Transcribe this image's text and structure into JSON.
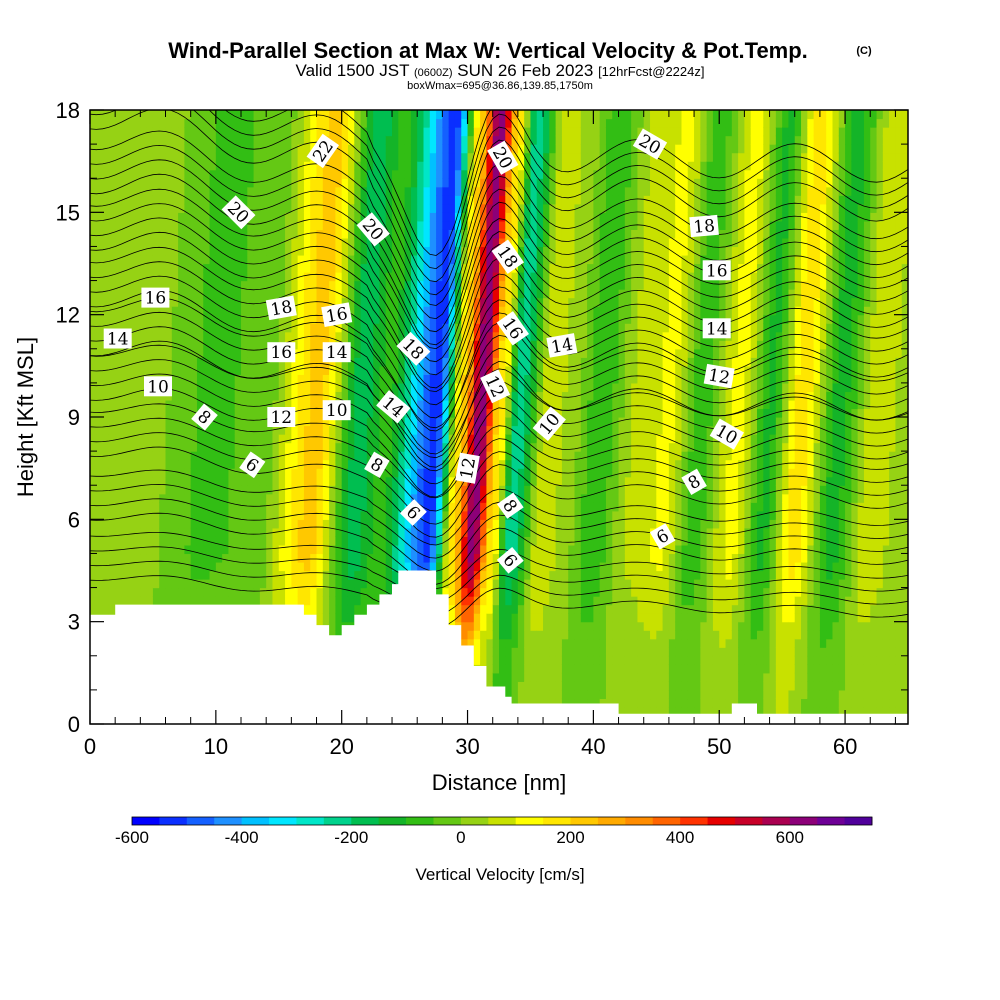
{
  "chart_data": {
    "type": "heatmap",
    "title": "Wind-Parallel Section at Max W: Vertical Velocity & Pot.Temp.",
    "title_mark": "(C)",
    "subtitle_parts": {
      "valid": "Valid 1500 JST",
      "utc": "(0600Z)",
      "date": "SUN 26 Feb 2023",
      "fcst": "[12hrFcst@2224z]"
    },
    "box_note": "boxWmax=695@36.86,139.85,1750m",
    "xlabel": "Distance [nm]",
    "ylabel": "Height [Kft MSL]",
    "xlim": [
      0,
      65
    ],
    "ylim": [
      0,
      18
    ],
    "xticks": [
      "0",
      "10",
      "20",
      "30",
      "40",
      "50",
      "60"
    ],
    "yticks": [
      "0",
      "3",
      "6",
      "9",
      "12",
      "15",
      "18"
    ],
    "colorbar": {
      "label": "Vertical Velocity [cm/s]",
      "min": -600,
      "max": 750,
      "step": 50,
      "tick_labels": [
        "-600",
        "-400",
        "-200",
        "0",
        "200",
        "400",
        "600"
      ],
      "colors": [
        "#0000ff",
        "#0a2fff",
        "#1460ff",
        "#1e90ff",
        "#00c0ff",
        "#00e6ff",
        "#00e6c8",
        "#00d28c",
        "#00be50",
        "#14b428",
        "#32be14",
        "#64c814",
        "#96d214",
        "#c8e100",
        "#ffff00",
        "#ffe600",
        "#ffc800",
        "#ffaa00",
        "#ff8c00",
        "#ff6400",
        "#ff3200",
        "#e60000",
        "#c80028",
        "#aa0050",
        "#8c0078",
        "#6e0096",
        "#50009b"
      ]
    },
    "velocity_bands": [
      {
        "x": 0,
        "w": 0
      },
      {
        "x": 4,
        "w": 20
      },
      {
        "x": 9,
        "w": -60
      },
      {
        "x": 13,
        "w": -40
      },
      {
        "x": 17.5,
        "w": 220
      },
      {
        "x": 21,
        "w": -180
      },
      {
        "x": 23,
        "w": -80
      },
      {
        "x": 27,
        "w": -520
      },
      {
        "x": 29,
        "w": 200
      },
      {
        "x": 30.5,
        "w": 640
      },
      {
        "x": 32,
        "w": 180
      },
      {
        "x": 33.5,
        "w": -230
      },
      {
        "x": 36,
        "w": 100
      },
      {
        "x": 38,
        "w": 10
      },
      {
        "x": 40,
        "w": -90
      },
      {
        "x": 43,
        "w": 60
      },
      {
        "x": 45.5,
        "w": 110
      },
      {
        "x": 48,
        "w": -80
      },
      {
        "x": 51,
        "w": 120
      },
      {
        "x": 53.5,
        "w": -110
      },
      {
        "x": 56,
        "w": 180
      },
      {
        "x": 59,
        "w": -120
      },
      {
        "x": 62,
        "w": 90
      },
      {
        "x": 65,
        "w": 0
      }
    ],
    "terrain": [
      [
        0,
        3.2
      ],
      [
        2,
        3.2
      ],
      [
        2,
        3.5
      ],
      [
        17,
        3.5
      ],
      [
        17,
        3.2
      ],
      [
        18,
        3.2
      ],
      [
        18,
        2.9
      ],
      [
        19,
        2.9
      ],
      [
        19,
        2.6
      ],
      [
        20,
        2.6
      ],
      [
        20,
        2.9
      ],
      [
        21,
        2.9
      ],
      [
        21,
        3.2
      ],
      [
        22,
        3.2
      ],
      [
        22,
        3.5
      ],
      [
        23,
        3.5
      ],
      [
        23,
        3.8
      ],
      [
        24,
        3.8
      ],
      [
        24,
        4.1
      ],
      [
        24.5,
        4.1
      ],
      [
        24.5,
        4.5
      ],
      [
        27.5,
        4.5
      ],
      [
        27.5,
        3.8
      ],
      [
        28.5,
        3.8
      ],
      [
        28.5,
        2.9
      ],
      [
        29.5,
        2.9
      ],
      [
        29.5,
        2.3
      ],
      [
        30.5,
        2.3
      ],
      [
        30.5,
        1.7
      ],
      [
        31.5,
        1.7
      ],
      [
        31.5,
        1.1
      ],
      [
        33,
        1.1
      ],
      [
        33,
        0.8
      ],
      [
        33.5,
        0.8
      ],
      [
        33.5,
        0.6
      ],
      [
        42,
        0.6
      ],
      [
        42,
        0.3
      ],
      [
        51,
        0.3
      ],
      [
        51,
        0.6
      ],
      [
        53,
        0.6
      ],
      [
        53,
        0.3
      ],
      [
        65,
        0.3
      ]
    ],
    "theta_contours": [
      {
        "value": "6",
        "base": 5.6,
        "amp": 1.0
      },
      {
        "value": "8",
        "base": 7.2,
        "amp": 1.4
      },
      {
        "value": "10",
        "base": 8.9,
        "amp": 1.8
      },
      {
        "value": "12",
        "base": 10.4,
        "amp": 2.2
      },
      {
        "value": "14",
        "base": 11.6,
        "amp": 2.6
      },
      {
        "value": "16",
        "base": 12.9,
        "amp": 2.9
      },
      {
        "value": "18",
        "base": 14.4,
        "amp": 3.2
      },
      {
        "value": "20",
        "base": 15.9,
        "amp": 3.5
      },
      {
        "value": "22",
        "base": 17.6,
        "amp": 3.8
      }
    ],
    "contour_labels": [
      {
        "text": "22",
        "x": 18.5,
        "y": 16.8,
        "rot": -55
      },
      {
        "text": "20",
        "x": 11.8,
        "y": 15.0,
        "rot": 45
      },
      {
        "text": "20",
        "x": 22.5,
        "y": 14.5,
        "rot": 50
      },
      {
        "text": "20",
        "x": 32.8,
        "y": 16.6,
        "rot": 60
      },
      {
        "text": "20",
        "x": 44.5,
        "y": 17.0,
        "rot": 30
      },
      {
        "text": "18",
        "x": 15.2,
        "y": 12.2,
        "rot": -10
      },
      {
        "text": "18",
        "x": 25.7,
        "y": 11.0,
        "rot": 45
      },
      {
        "text": "18",
        "x": 33.2,
        "y": 13.7,
        "rot": 55
      },
      {
        "text": "18",
        "x": 48.8,
        "y": 14.6,
        "rot": -5
      },
      {
        "text": "16",
        "x": 5.2,
        "y": 12.5,
        "rot": 0
      },
      {
        "text": "16",
        "x": 15.2,
        "y": 10.9,
        "rot": 0
      },
      {
        "text": "16",
        "x": 19.6,
        "y": 12.0,
        "rot": -10
      },
      {
        "text": "16",
        "x": 33.6,
        "y": 11.6,
        "rot": 55
      },
      {
        "text": "16",
        "x": 49.8,
        "y": 13.3,
        "rot": 0
      },
      {
        "text": "14",
        "x": 2.2,
        "y": 11.3,
        "rot": 0
      },
      {
        "text": "14",
        "x": 19.6,
        "y": 10.9,
        "rot": 0
      },
      {
        "text": "14",
        "x": 24.1,
        "y": 9.3,
        "rot": 40
      },
      {
        "text": "14",
        "x": 37.5,
        "y": 11.1,
        "rot": -10
      },
      {
        "text": "14",
        "x": 49.8,
        "y": 11.6,
        "rot": 0
      },
      {
        "text": "12",
        "x": 15.2,
        "y": 9.0,
        "rot": 0
      },
      {
        "text": "12",
        "x": 32.2,
        "y": 9.9,
        "rot": 65
      },
      {
        "text": "12",
        "x": 30.0,
        "y": 7.5,
        "rot": -80
      },
      {
        "text": "12",
        "x": 50.0,
        "y": 10.2,
        "rot": 10
      },
      {
        "text": "10",
        "x": 5.4,
        "y": 9.9,
        "rot": 0
      },
      {
        "text": "10",
        "x": 19.6,
        "y": 9.2,
        "rot": 0
      },
      {
        "text": "10",
        "x": 36.5,
        "y": 8.8,
        "rot": -50
      },
      {
        "text": "10",
        "x": 50.6,
        "y": 8.5,
        "rot": 30
      },
      {
        "text": "8",
        "x": 9.1,
        "y": 9.0,
        "rot": 40
      },
      {
        "text": "8",
        "x": 22.8,
        "y": 7.6,
        "rot": 30
      },
      {
        "text": "8",
        "x": 33.4,
        "y": 6.4,
        "rot": 55
      },
      {
        "text": "8",
        "x": 48.0,
        "y": 7.1,
        "rot": -30
      },
      {
        "text": "6",
        "x": 12.9,
        "y": 7.6,
        "rot": 35
      },
      {
        "text": "6",
        "x": 25.7,
        "y": 6.2,
        "rot": 45
      },
      {
        "text": "6",
        "x": 33.4,
        "y": 4.8,
        "rot": 50
      },
      {
        "text": "6",
        "x": 45.5,
        "y": 5.5,
        "rot": -30
      }
    ]
  }
}
